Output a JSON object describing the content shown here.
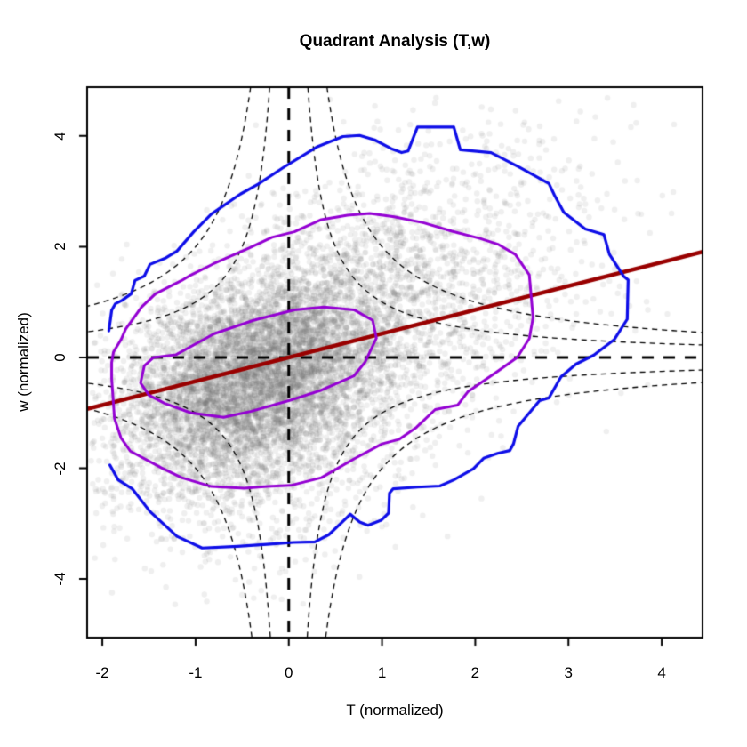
{
  "title": "Quadrant Analysis (T,w)",
  "axes": {
    "x_label": "T (normalized)",
    "y_label": "w (normalized)"
  },
  "colors": {
    "outer_contour": "#0D0DE8",
    "mid_contour": "#9400D3",
    "inner_contour": "#9400D3",
    "regression": "#990000",
    "reference_dashed": "#000000",
    "hyperbola_dashed": "#000000",
    "scatter": "rgba(110,110,110,0.11)",
    "frame": "#000000"
  },
  "chart_data": {
    "type": "scatter",
    "title": "Quadrant Analysis (T,w)",
    "xlabel": "T (normalized)",
    "ylabel": "w (normalized)",
    "xlim": [
      -2.163,
      4.438
    ],
    "ylim": [
      -5.058,
      4.881
    ],
    "x_ticks": [
      -2,
      -1,
      0,
      1,
      2,
      3,
      4
    ],
    "y_ticks": [
      -4,
      -2,
      0,
      2,
      4
    ],
    "grid": false,
    "legend": "none",
    "reference_lines": {
      "vertical_T": 0,
      "horizontal_w": 0
    },
    "hole_hyperbolas": {
      "equation": "|T*w| = c",
      "constants": [
        1,
        2
      ]
    },
    "regression_line": {
      "slope": 0.43,
      "intercept": 0.0,
      "x_range": [
        -2.163,
        4.438
      ]
    },
    "scatter": {
      "n": 9000,
      "seed": 7,
      "radius": 3.2,
      "points_rendered_procedurally": true,
      "mixture": [
        {
          "w": 0.66,
          "mx": -0.35,
          "my": -0.35,
          "sx": 0.72,
          "sy": 0.95,
          "rho": 0.32
        },
        {
          "w": 0.28,
          "mx": 0.9,
          "my": 0.8,
          "sx": 1.1,
          "sy": 1.45,
          "rho": 0.45
        },
        {
          "w": 0.06,
          "mx": -0.3,
          "my": -1.9,
          "sx": 0.75,
          "sy": 1.05,
          "rho": 0.1
        }
      ],
      "clip": {
        "T": [
          -2.12,
          4.3
        ],
        "w": [
          -4.65,
          4.7
        ]
      }
    },
    "contours": {
      "outer": {
        "closed": false,
        "points": [
          [
            -1.93,
            0.48
          ],
          [
            -1.9,
            0.85
          ],
          [
            -1.86,
            0.97
          ],
          [
            -1.79,
            1.03
          ],
          [
            -1.69,
            1.15
          ],
          [
            -1.65,
            1.39
          ],
          [
            -1.55,
            1.47
          ],
          [
            -1.49,
            1.68
          ],
          [
            -1.33,
            1.79
          ],
          [
            -1.2,
            1.92
          ],
          [
            -1.02,
            2.27
          ],
          [
            -0.83,
            2.59
          ],
          [
            -0.52,
            2.95
          ],
          [
            -0.33,
            3.13
          ],
          [
            -0.05,
            3.44
          ],
          [
            0.3,
            3.8
          ],
          [
            0.58,
            3.99
          ],
          [
            0.76,
            4.01
          ],
          [
            0.92,
            3.93
          ],
          [
            1.1,
            3.77
          ],
          [
            1.21,
            3.7
          ],
          [
            1.28,
            3.73
          ],
          [
            1.38,
            4.16
          ],
          [
            1.77,
            4.16
          ],
          [
            1.84,
            3.75
          ],
          [
            2.17,
            3.7
          ],
          [
            2.48,
            3.43
          ],
          [
            2.79,
            3.14
          ],
          [
            2.85,
            2.93
          ],
          [
            2.95,
            2.62
          ],
          [
            3.18,
            2.32
          ],
          [
            3.38,
            2.22
          ],
          [
            3.44,
            1.86
          ],
          [
            3.59,
            1.47
          ],
          [
            3.64,
            1.4
          ],
          [
            3.63,
            0.69
          ],
          [
            3.49,
            0.32
          ],
          [
            3.27,
            0.04
          ],
          [
            3.08,
            -0.12
          ],
          [
            2.92,
            -0.35
          ],
          [
            2.79,
            -0.73
          ],
          [
            2.69,
            -0.78
          ],
          [
            2.46,
            -1.24
          ],
          [
            2.41,
            -1.56
          ],
          [
            2.37,
            -1.68
          ],
          [
            2.24,
            -1.73
          ],
          [
            2.09,
            -1.82
          ],
          [
            1.98,
            -2.01
          ],
          [
            1.77,
            -2.21
          ],
          [
            1.62,
            -2.32
          ],
          [
            1.38,
            -2.34
          ],
          [
            1.12,
            -2.37
          ],
          [
            1.08,
            -2.45
          ],
          [
            1.07,
            -2.81
          ],
          [
            0.99,
            -2.94
          ],
          [
            0.85,
            -3.03
          ],
          [
            0.76,
            -2.97
          ],
          [
            0.66,
            -2.83
          ],
          [
            0.58,
            -2.96
          ],
          [
            0.43,
            -3.2
          ],
          [
            0.28,
            -3.33
          ],
          [
            0.05,
            -3.34
          ],
          [
            -0.2,
            -3.37
          ],
          [
            -0.55,
            -3.41
          ],
          [
            -0.93,
            -3.44
          ],
          [
            -1.2,
            -3.23
          ],
          [
            -1.49,
            -2.78
          ],
          [
            -1.68,
            -2.37
          ],
          [
            -1.83,
            -2.21
          ],
          [
            -1.92,
            -1.94
          ]
        ]
      },
      "mid": {
        "closed": true,
        "points": [
          [
            -1.9,
            -0.09
          ],
          [
            -1.88,
            0.1
          ],
          [
            -1.8,
            0.32
          ],
          [
            -1.75,
            0.51
          ],
          [
            -1.58,
            0.91
          ],
          [
            -1.43,
            1.15
          ],
          [
            -1.15,
            1.39
          ],
          [
            -1.07,
            1.47
          ],
          [
            -0.81,
            1.69
          ],
          [
            -0.42,
            1.98
          ],
          [
            -0.18,
            2.17
          ],
          [
            0.06,
            2.27
          ],
          [
            0.35,
            2.49
          ],
          [
            0.63,
            2.57
          ],
          [
            0.87,
            2.6
          ],
          [
            1.13,
            2.54
          ],
          [
            1.45,
            2.43
          ],
          [
            1.75,
            2.28
          ],
          [
            2.05,
            2.15
          ],
          [
            2.25,
            2.04
          ],
          [
            2.43,
            1.86
          ],
          [
            2.58,
            1.49
          ],
          [
            2.62,
            0.72
          ],
          [
            2.58,
            0.34
          ],
          [
            2.45,
            0.0
          ],
          [
            2.24,
            -0.25
          ],
          [
            1.92,
            -0.62
          ],
          [
            1.81,
            -0.86
          ],
          [
            1.57,
            -0.94
          ],
          [
            1.37,
            -1.26
          ],
          [
            1.18,
            -1.48
          ],
          [
            1.0,
            -1.56
          ],
          [
            0.7,
            -1.83
          ],
          [
            0.35,
            -2.17
          ],
          [
            0.02,
            -2.31
          ],
          [
            -0.23,
            -2.33
          ],
          [
            -0.48,
            -2.36
          ],
          [
            -0.83,
            -2.33
          ],
          [
            -1.15,
            -2.17
          ],
          [
            -1.37,
            -1.99
          ],
          [
            -1.7,
            -1.69
          ],
          [
            -1.8,
            -1.45
          ],
          [
            -1.87,
            -1.1
          ],
          [
            -1.9,
            -0.38
          ]
        ]
      },
      "inner": {
        "closed": true,
        "points": [
          [
            -1.59,
            -0.46
          ],
          [
            -1.55,
            -0.15
          ],
          [
            -1.45,
            0.0
          ],
          [
            -1.21,
            0.05
          ],
          [
            -0.8,
            0.43
          ],
          [
            -0.38,
            0.67
          ],
          [
            0.06,
            0.86
          ],
          [
            0.38,
            0.91
          ],
          [
            0.7,
            0.86
          ],
          [
            0.9,
            0.67
          ],
          [
            0.94,
            0.35
          ],
          [
            0.82,
            -0.08
          ],
          [
            0.7,
            -0.33
          ],
          [
            0.35,
            -0.59
          ],
          [
            0.0,
            -0.78
          ],
          [
            -0.4,
            -0.97
          ],
          [
            -0.7,
            -1.08
          ],
          [
            -1.05,
            -1.0
          ],
          [
            -1.33,
            -0.83
          ],
          [
            -1.5,
            -0.68
          ]
        ]
      }
    }
  }
}
